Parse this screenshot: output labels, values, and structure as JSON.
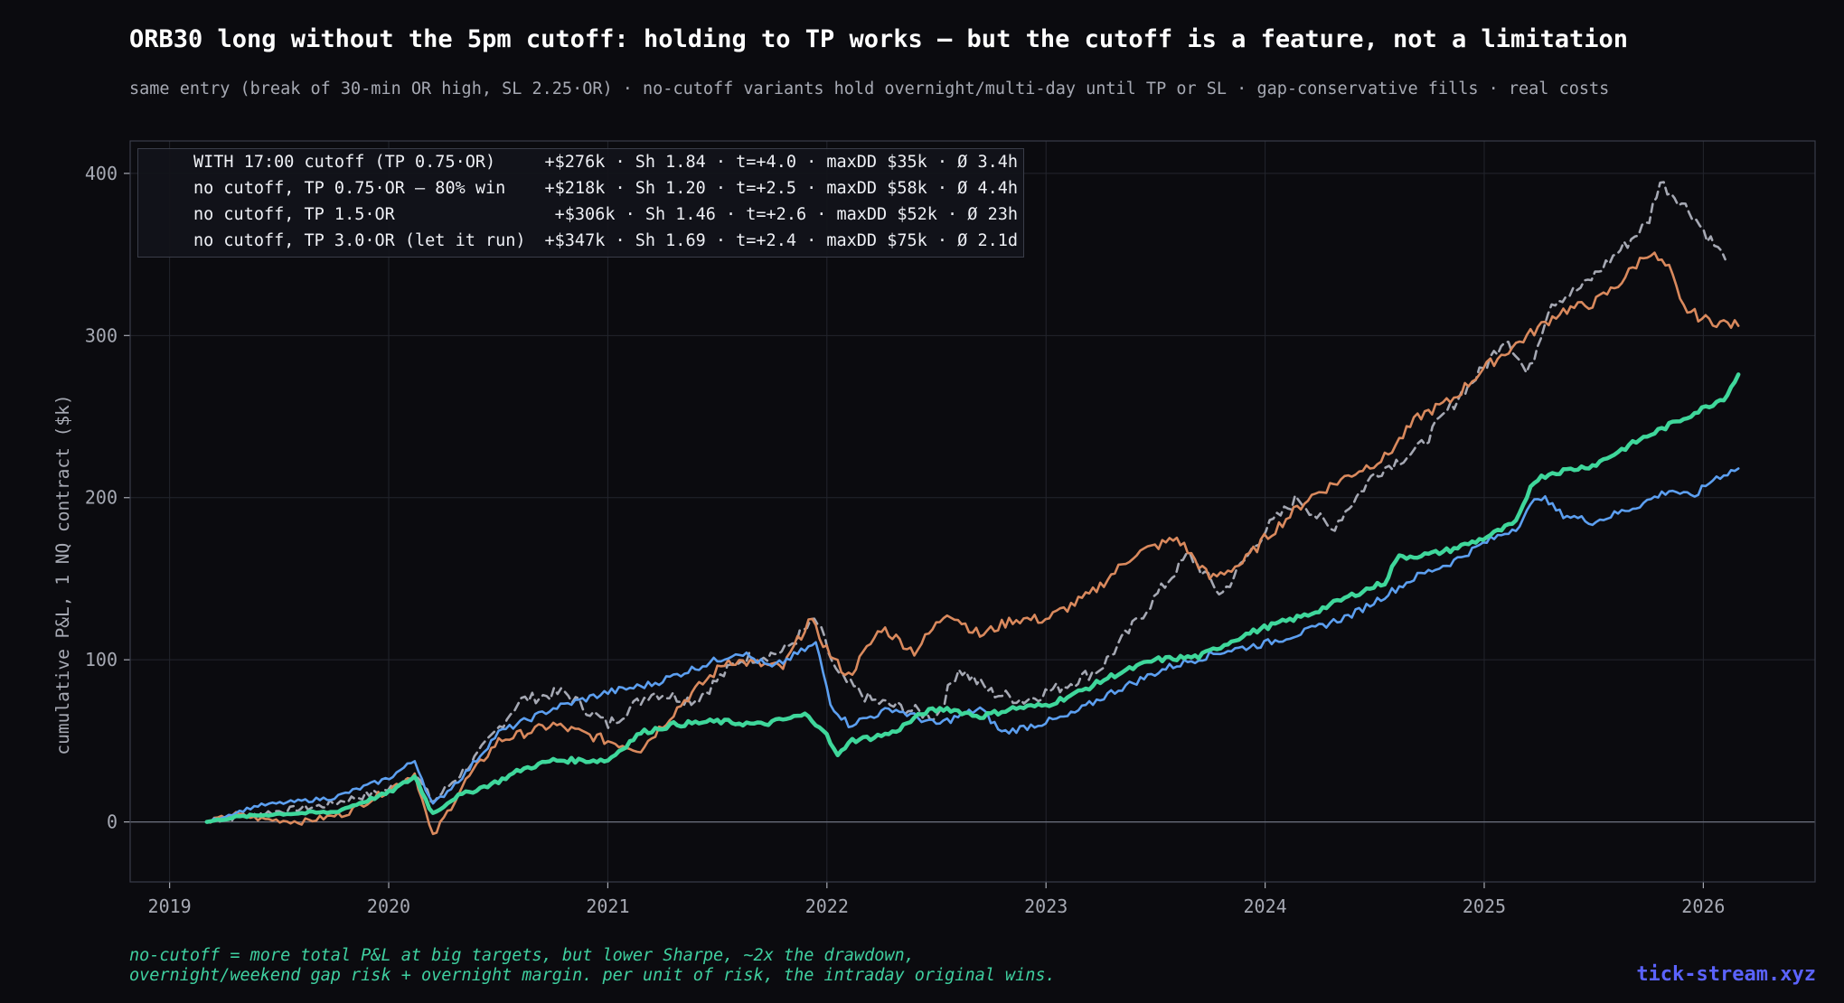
{
  "header": {
    "title": "ORB30 long without the 5pm cutoff: holding to TP works — but the cutoff is a feature, not a limitation",
    "subtitle": "same entry (break of 30-min OR high, SL 2.25·OR) · no-cutoff variants hold overnight/multi-day until TP or SL · gap-conservative fills · real costs"
  },
  "legend": [
    {
      "label": "WITH 17:00 cutoff (TP 0.75·OR)",
      "stats": "+$276k · Sh 1.84 · t=+4.0 · maxDD $35k · Ø 3.4h"
    },
    {
      "label": "no cutoff, TP 0.75·OR — 80% win",
      "stats": "+$218k · Sh 1.20 · t=+2.5 · maxDD $58k · Ø 4.4h"
    },
    {
      "label": "no cutoff, TP 1.5·OR",
      "stats": "+$306k · Sh 1.46 · t=+2.6 · maxDD $52k · Ø 23h"
    },
    {
      "label": "no cutoff, TP 3.0·OR (let it run)",
      "stats": "+$347k · Sh 1.69 · t=+2.4 · maxDD $75k · Ø 2.1d"
    }
  ],
  "footer": {
    "note": "no-cutoff = more total P&L at big targets, but lower Sharpe, ~2x the drawdown,\novernight/weekend gap risk + overnight margin. per unit of risk, the intraday original wins.",
    "brand": "tick-stream.xyz"
  },
  "colors": {
    "background": "#0b0b0f",
    "grid": "#23252d",
    "axis": "#3a3d49",
    "tick_text": "#a6a9b3",
    "zero_line": "#6e7280"
  },
  "chart_data": {
    "type": "line",
    "xlabel": "",
    "ylabel": "cumulative P&L, 1 NQ contract ($k)",
    "xlim": [
      2018.82,
      2026.51
    ],
    "ylim": [
      -37,
      420
    ],
    "xticks": [
      2019,
      2020,
      2021,
      2022,
      2023,
      2024,
      2025,
      2026
    ],
    "yticks": [
      0,
      100,
      200,
      300,
      400
    ],
    "grid": true,
    "legend_position": "top-left",
    "series": [
      {
        "name": "WITH 17:00 cutoff (TP 0.75·OR)",
        "color": "#3fd79b",
        "dash": "",
        "width": 4.5,
        "x": [
          2019.17,
          2019.3,
          2019.5,
          2019.75,
          2020.0,
          2020.12,
          2020.2,
          2020.3,
          2020.5,
          2020.6,
          2020.75,
          2021.0,
          2021.15,
          2021.3,
          2021.5,
          2021.7,
          2021.9,
          2021.98,
          2022.05,
          2022.1,
          2022.2,
          2022.3,
          2022.45,
          2022.55,
          2022.7,
          2022.85,
          2023.0,
          2023.15,
          2023.3,
          2023.5,
          2023.7,
          2023.9,
          2024.0,
          2024.2,
          2024.4,
          2024.55,
          2024.6,
          2024.75,
          2024.85,
          2025.0,
          2025.15,
          2025.22,
          2025.3,
          2025.5,
          2025.7,
          2025.85,
          2026.0,
          2026.1,
          2026.16
        ],
        "y": [
          0,
          3,
          5,
          6,
          18,
          28,
          5,
          15,
          25,
          32,
          38,
          38,
          55,
          60,
          62,
          60,
          66,
          58,
          40,
          50,
          52,
          55,
          68,
          70,
          65,
          70,
          72,
          80,
          90,
          100,
          102,
          115,
          120,
          128,
          140,
          148,
          163,
          165,
          168,
          175,
          185,
          210,
          215,
          220,
          235,
          245,
          255,
          262,
          276
        ]
      },
      {
        "name": "no cutoff, TP 0.75·OR — 80% win",
        "color": "#5c9ff0",
        "dash": "",
        "width": 2.6,
        "x": [
          2019.17,
          2019.4,
          2019.75,
          2020.0,
          2020.12,
          2020.2,
          2020.35,
          2020.5,
          2020.75,
          2021.0,
          2021.2,
          2021.4,
          2021.6,
          2021.75,
          2021.95,
          2022.02,
          2022.1,
          2022.3,
          2022.5,
          2022.7,
          2022.8,
          2022.95,
          2023.1,
          2023.3,
          2023.55,
          2023.8,
          2024.0,
          2024.2,
          2024.4,
          2024.55,
          2024.7,
          2024.85,
          2025.0,
          2025.15,
          2025.25,
          2025.35,
          2025.5,
          2025.7,
          2025.85,
          2025.95,
          2026.05,
          2026.16
        ],
        "y": [
          0,
          10,
          15,
          27,
          38,
          10,
          30,
          55,
          70,
          80,
          85,
          95,
          105,
          95,
          110,
          72,
          60,
          70,
          60,
          70,
          55,
          60,
          65,
          80,
          95,
          105,
          110,
          118,
          128,
          140,
          152,
          160,
          172,
          182,
          202,
          190,
          185,
          195,
          205,
          200,
          212,
          218
        ]
      },
      {
        "name": "no cutoff, TP 1.5·OR",
        "color": "#d9895d",
        "dash": "",
        "width": 2.6,
        "x": [
          2019.17,
          2019.3,
          2019.4,
          2019.6,
          2019.8,
          2020.0,
          2020.12,
          2020.2,
          2020.35,
          2020.5,
          2020.75,
          2021.0,
          2021.15,
          2021.35,
          2021.55,
          2021.8,
          2021.92,
          2022.03,
          2022.1,
          2022.25,
          2022.4,
          2022.55,
          2022.7,
          2022.85,
          2023.0,
          2023.2,
          2023.4,
          2023.6,
          2023.75,
          2023.9,
          2024.0,
          2024.2,
          2024.4,
          2024.55,
          2024.7,
          2024.85,
          2025.0,
          2025.1,
          2025.2,
          2025.35,
          2025.5,
          2025.6,
          2025.75,
          2025.85,
          2025.9,
          2026.0,
          2026.16
        ],
        "y": [
          0,
          5,
          2,
          0,
          5,
          20,
          30,
          -10,
          25,
          50,
          60,
          50,
          45,
          75,
          100,
          95,
          125,
          100,
          90,
          120,
          105,
          130,
          115,
          125,
          125,
          140,
          165,
          175,
          150,
          160,
          175,
          200,
          215,
          225,
          250,
          260,
          280,
          290,
          300,
          315,
          320,
          330,
          352,
          340,
          318,
          310,
          306
        ]
      },
      {
        "name": "no cutoff, TP 3.0·OR (let it run)",
        "color": "#a5a8b3",
        "dash": "9 6",
        "width": 2.6,
        "x": [
          2019.17,
          2019.4,
          2019.7,
          2020.0,
          2020.12,
          2020.2,
          2020.4,
          2020.6,
          2020.8,
          2021.0,
          2021.2,
          2021.4,
          2021.6,
          2021.8,
          2021.95,
          2022.05,
          2022.2,
          2022.35,
          2022.5,
          2022.6,
          2022.75,
          2022.9,
          2023.1,
          2023.25,
          2023.45,
          2023.65,
          2023.8,
          2024.0,
          2024.15,
          2024.3,
          2024.5,
          2024.7,
          2024.9,
          2025.0,
          2025.1,
          2025.2,
          2025.3,
          2025.45,
          2025.6,
          2025.75,
          2025.8,
          2025.88,
          2025.95,
          2026.0,
          2026.1
        ],
        "y": [
          0,
          5,
          10,
          20,
          30,
          12,
          40,
          75,
          80,
          60,
          80,
          75,
          100,
          105,
          125,
          90,
          75,
          70,
          65,
          95,
          80,
          75,
          85,
          95,
          130,
          165,
          140,
          180,
          200,
          180,
          215,
          230,
          265,
          280,
          300,
          275,
          320,
          330,
          350,
          370,
          395,
          385,
          375,
          365,
          347
        ]
      }
    ]
  }
}
